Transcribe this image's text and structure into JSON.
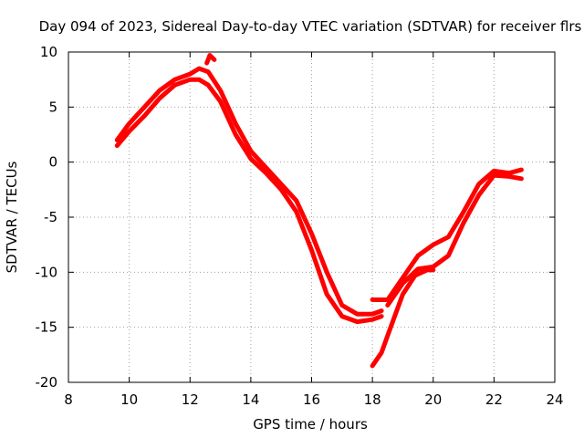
{
  "chart_data": {
    "type": "line",
    "title": "Day 094 of 2023, Sidereal Day-to-day VTEC variation (SDTVAR) for receiver flrs",
    "xlabel": "GPS time / hours",
    "ylabel": "SDTVAR / TECUs",
    "xlim": [
      8,
      24
    ],
    "ylim": [
      -20,
      10
    ],
    "xticks": [
      8,
      10,
      12,
      14,
      16,
      18,
      20,
      22,
      24
    ],
    "yticks": [
      -20,
      -15,
      -10,
      -5,
      0,
      5,
      10
    ],
    "grid": true,
    "series_color": "#ff0000",
    "series": [
      {
        "name": "band-upper",
        "x": [
          9.6,
          10.0,
          10.5,
          11.0,
          11.5,
          12.0,
          12.3,
          12.6,
          13.0,
          13.5,
          14.0,
          14.5,
          15.0,
          15.5,
          16.0,
          16.5,
          17.0,
          17.5,
          18.0,
          18.3
        ],
        "y": [
          2.0,
          3.5,
          5.0,
          6.5,
          7.5,
          8.0,
          8.5,
          8.2,
          6.5,
          3.5,
          1.0,
          -0.5,
          -2.0,
          -3.5,
          -6.5,
          -10.0,
          -13.0,
          -13.8,
          -13.8,
          -13.5
        ]
      },
      {
        "name": "band-lower",
        "x": [
          9.6,
          10.0,
          10.5,
          11.0,
          11.5,
          12.0,
          12.3,
          12.6,
          13.0,
          13.5,
          14.0,
          14.5,
          15.0,
          15.5,
          16.0,
          16.5,
          17.0,
          17.5,
          18.0,
          18.3
        ],
        "y": [
          1.5,
          2.8,
          4.2,
          5.8,
          7.0,
          7.5,
          7.5,
          7.0,
          5.5,
          2.5,
          0.3,
          -1.0,
          -2.5,
          -4.5,
          -8.0,
          -12.0,
          -14.0,
          -14.5,
          -14.3,
          -14.0
        ]
      },
      {
        "name": "spike",
        "x": [
          12.55,
          12.65,
          12.8
        ],
        "y": [
          9.0,
          9.7,
          9.3
        ]
      },
      {
        "name": "recovery-upper",
        "x": [
          18.0,
          18.5,
          19.0,
          19.5,
          20.0,
          20.5,
          21.0,
          21.5,
          22.0,
          22.5,
          22.9
        ],
        "y": [
          -12.5,
          -12.5,
          -10.5,
          -8.5,
          -7.5,
          -6.8,
          -4.5,
          -2.0,
          -0.8,
          -1.0,
          -0.7
        ]
      },
      {
        "name": "recovery-lower",
        "x": [
          18.5,
          19.0,
          19.5,
          20.0,
          20.5,
          21.0,
          21.5,
          22.0,
          22.5,
          22.9
        ],
        "y": [
          -13.0,
          -11.0,
          -9.7,
          -9.5,
          -8.5,
          -5.5,
          -3.0,
          -1.2,
          -1.3,
          -1.5
        ]
      },
      {
        "name": "descent-branch",
        "x": [
          18.0,
          18.3,
          18.6,
          19.0,
          19.4,
          19.8,
          20.0
        ],
        "y": [
          -18.5,
          -17.3,
          -15.0,
          -12.0,
          -10.3,
          -9.8,
          -9.8
        ]
      }
    ]
  }
}
